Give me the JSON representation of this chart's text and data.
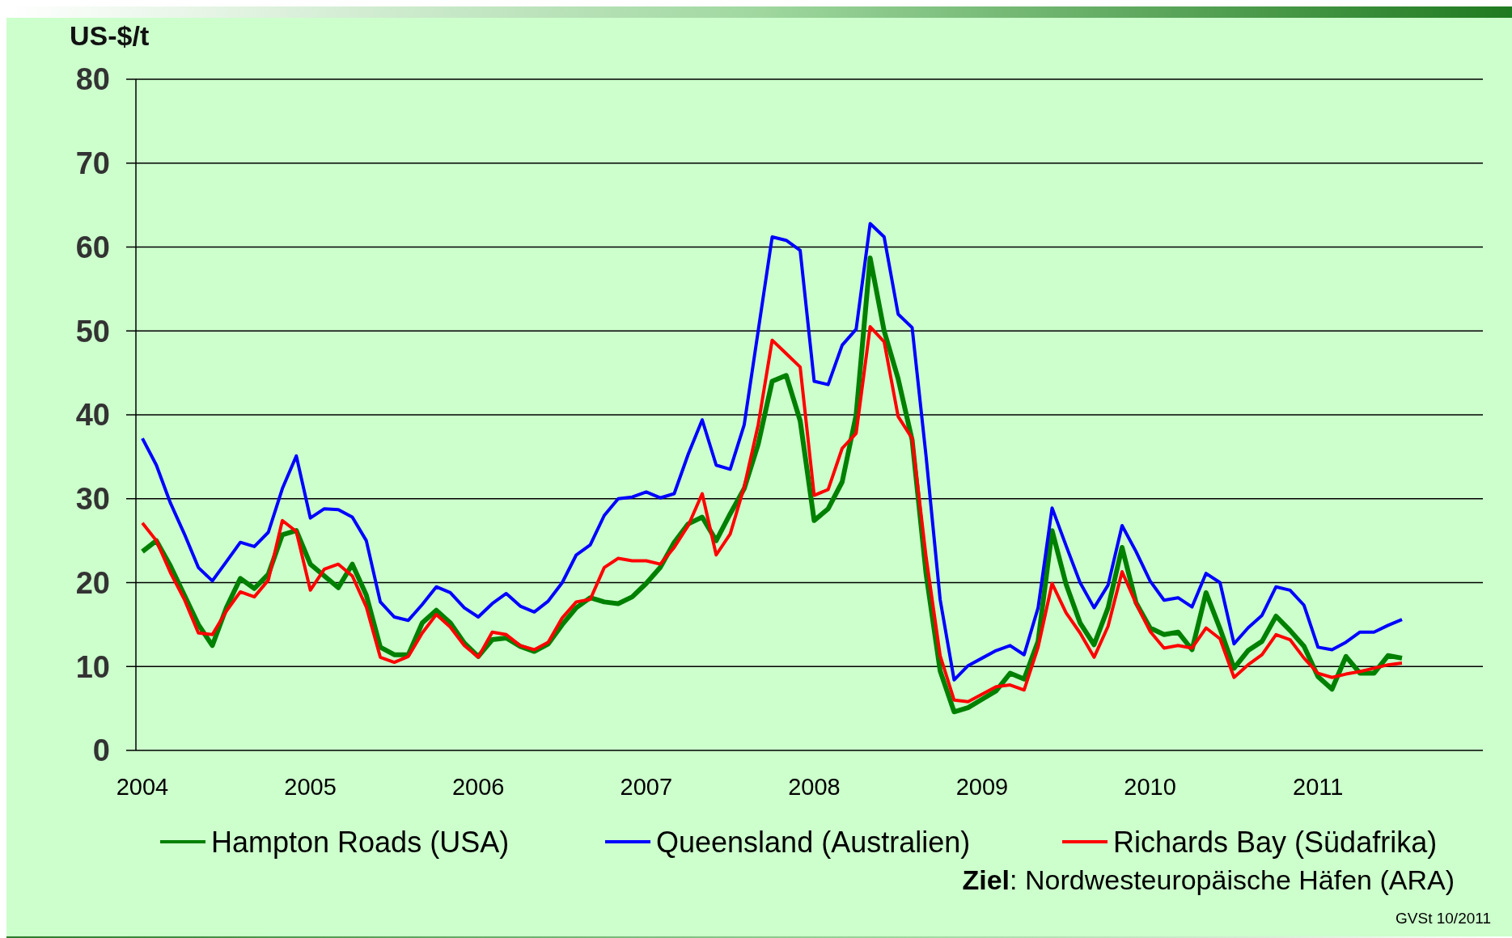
{
  "chart_data": {
    "type": "line",
    "ylabel": "US-$/t",
    "categories": [
      "2004",
      null,
      null,
      null,
      null,
      null,
      null,
      null,
      null,
      null,
      null,
      null,
      "2005",
      null,
      null,
      null,
      null,
      null,
      null,
      null,
      null,
      null,
      null,
      null,
      "2006",
      null,
      null,
      null,
      null,
      null,
      null,
      null,
      null,
      null,
      null,
      null,
      "2007",
      null,
      null,
      null,
      null,
      null,
      null,
      null,
      null,
      null,
      null,
      null,
      "2008",
      null,
      null,
      null,
      null,
      null,
      null,
      null,
      null,
      null,
      null,
      null,
      "2009",
      null,
      null,
      null,
      null,
      null,
      null,
      null,
      null,
      null,
      null,
      null,
      "2010",
      null,
      null,
      null,
      null,
      null,
      null,
      null,
      null,
      null,
      null,
      null,
      "2011",
      null,
      null,
      null,
      null,
      null,
      null
    ],
    "series": [
      {
        "name": "Hampton Roads (USA)",
        "color": "#008000",
        "values": [
          23.7,
          25,
          22,
          18.5,
          15,
          12.5,
          17,
          20.5,
          19.3,
          21,
          25.7,
          26.2,
          22.2,
          20.8,
          19.4,
          22.2,
          18.5,
          12.3,
          11.4,
          11.4,
          15.2,
          16.7,
          15.2,
          12.8,
          11.2,
          13.2,
          13.4,
          12.4,
          11.8,
          12.7,
          15,
          17,
          18.2,
          17.7,
          17.5,
          18.3,
          19.9,
          21.8,
          24.8,
          27,
          27.8,
          25,
          28.2,
          31.2,
          36.5,
          44,
          44.7,
          39.3,
          27.4,
          28.8,
          32,
          40,
          58.7,
          50,
          44.3,
          37,
          21,
          9.5,
          4.6,
          5.1,
          6.1,
          7.1,
          9.2,
          8.5,
          13,
          26.2,
          19.8,
          15.2,
          12.6,
          17,
          24.2,
          17.6,
          14.6,
          13.8,
          14.1,
          12,
          18.8,
          14.5,
          9.8,
          11.9,
          13,
          16,
          14.3,
          12.4,
          8.8,
          7.3,
          11.2,
          9.2,
          9.2,
          11.3,
          11
        ]
      },
      {
        "name": "Queensland (Australien)",
        "color": "#0000ff",
        "values": [
          37.2,
          34,
          29.5,
          25.8,
          21.8,
          20.2,
          22.5,
          24.8,
          24.3,
          26,
          31.2,
          35.1,
          27.7,
          28.8,
          28.7,
          27.8,
          25,
          17.7,
          15.9,
          15.5,
          17.4,
          19.5,
          18.8,
          17,
          15.9,
          17.5,
          18.7,
          17.2,
          16.5,
          17.8,
          20,
          23.3,
          24.5,
          28,
          30,
          30.2,
          30.8,
          30.1,
          30.6,
          35.3,
          39.4,
          34,
          33.5,
          38.8,
          50,
          61.2,
          60.8,
          59.6,
          44,
          43.6,
          48.3,
          50.2,
          62.8,
          61.2,
          52,
          50.4,
          35,
          18,
          8.4,
          10.1,
          11,
          11.9,
          12.5,
          11.4,
          17,
          28.9,
          24.4,
          20,
          17,
          19.7,
          26.8,
          23.7,
          20.2,
          17.9,
          18.2,
          17.1,
          21.1,
          20,
          12.7,
          14.6,
          16.1,
          19.5,
          19.1,
          17.3,
          12.3,
          12,
          12.9,
          14.1,
          14.1,
          14.9,
          15.6
        ]
      },
      {
        "name": "Richards Bay (Südafrika)",
        "color": "#ff0000",
        "values": [
          27.1,
          25,
          21.2,
          18,
          14,
          13.8,
          16.6,
          18.9,
          18.3,
          20.3,
          27.4,
          26.1,
          19.1,
          21.6,
          22.2,
          20.8,
          17.1,
          11.1,
          10.5,
          11.2,
          14,
          16.2,
          14.7,
          12.5,
          11.1,
          14.1,
          13.8,
          12.5,
          12,
          12.9,
          15.8,
          17.7,
          18,
          21.8,
          22.9,
          22.6,
          22.6,
          22.2,
          24.2,
          26.8,
          30.6,
          23.3,
          25.8,
          31.4,
          38.8,
          48.9,
          47.3,
          45.7,
          30.4,
          31.1,
          36,
          37.8,
          50.5,
          48.7,
          39.8,
          37.2,
          23,
          11.3,
          6,
          5.8,
          6.7,
          7.6,
          7.8,
          7.2,
          12.3,
          19.9,
          16.4,
          14,
          11.1,
          14.8,
          21.3,
          17.5,
          14.2,
          12.2,
          12.5,
          12.2,
          14.6,
          13.3,
          8.7,
          10.2,
          11.4,
          13.8,
          13.2,
          11,
          9.2,
          8.7,
          9.1,
          9.4,
          9.8,
          10.2,
          10.4
        ]
      }
    ],
    "ylim": [
      0,
      80
    ],
    "yticks": [
      0,
      10,
      20,
      30,
      40,
      50,
      60,
      70,
      80
    ],
    "grid": "y",
    "legend": "bottom",
    "marker": "none",
    "line_style": "solid",
    "annotations": [
      "Ziel: Nordwesteuropäische Häfen (ARA)",
      "GVSt 10/2011"
    ]
  }
}
